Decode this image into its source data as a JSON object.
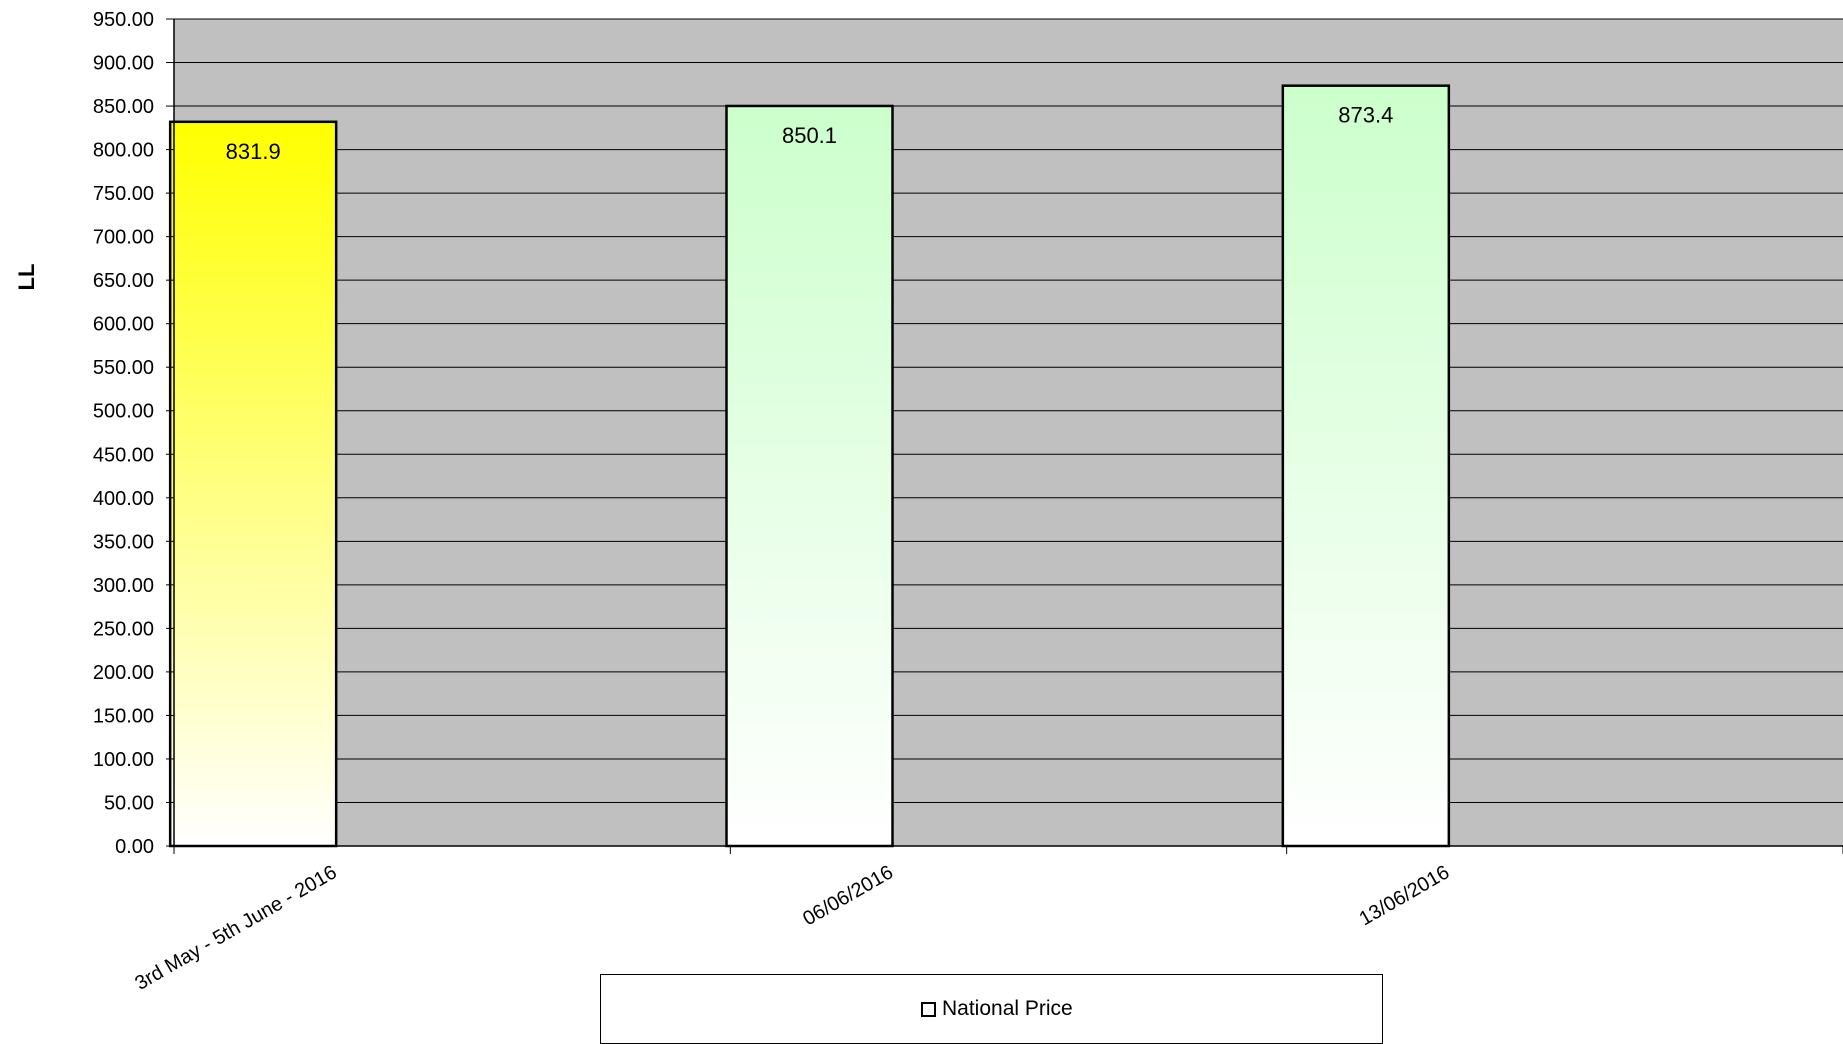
{
  "chart_data": {
    "type": "bar",
    "title": "",
    "xlabel": "",
    "ylabel": "LL",
    "categories": [
      "3rd May - 5th June - 2016",
      "06/06/2016",
      "13/06/2016"
    ],
    "series": [
      {
        "name": "National Price",
        "values": [
          831.9,
          850.1,
          873.4
        ]
      }
    ],
    "data_labels": [
      "831.9",
      "850.1",
      "873.4"
    ],
    "bar_colors": [
      "#ffff00",
      "#ccffcc",
      "#ccffcc"
    ],
    "ylim": [
      0,
      950
    ],
    "ytick_step": 50,
    "ytick_labels": [
      "0.00",
      "50.00",
      "100.00",
      "150.00",
      "200.00",
      "250.00",
      "300.00",
      "350.00",
      "400.00",
      "450.00",
      "500.00",
      "550.00",
      "600.00",
      "650.00",
      "700.00",
      "750.00",
      "800.00",
      "850.00",
      "900.00",
      "950.00"
    ],
    "grid": true,
    "plot_background": "#c0c0c0",
    "legend_position": "bottom"
  },
  "legend": {
    "label": "National Price"
  }
}
